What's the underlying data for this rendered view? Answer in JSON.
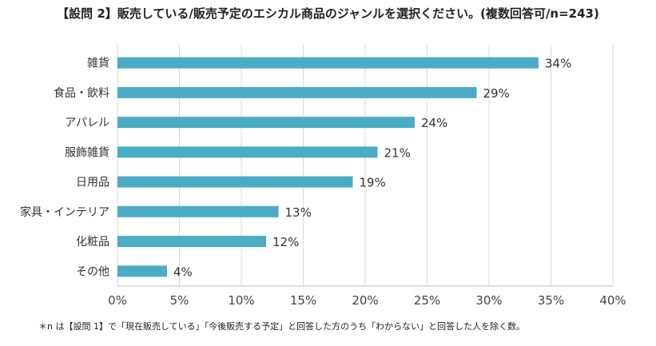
{
  "chart_data": {
    "type": "bar",
    "orientation": "horizontal",
    "title": "【設問 2】販売している/販売予定のエシカル商品のジャンルを選択ください。(複数回答可/n=243)",
    "categories": [
      "雑貨",
      "食品・飲料",
      "アパレル",
      "服飾雑貨",
      "日用品",
      "家具・インテリア",
      "化粧品",
      "その他"
    ],
    "values": [
      34,
      29,
      24,
      21,
      19,
      13,
      12,
      4
    ],
    "value_labels": [
      "34%",
      "29%",
      "24%",
      "21%",
      "19%",
      "13%",
      "12%",
      "4%"
    ],
    "xlim": [
      0,
      40
    ],
    "xticks": [
      0,
      5,
      10,
      15,
      20,
      25,
      30,
      35,
      40
    ],
    "xtick_labels": [
      "0%",
      "5%",
      "10%",
      "15%",
      "20%",
      "25%",
      "30%",
      "35%",
      "40%"
    ],
    "grid": true,
    "bar_color": "#4bacc6"
  },
  "footnote": "＊n は【設問 1】で「現在販売している」「今後販売する予定」と回答した方のうち「わからない」と回答した人を除く数。"
}
